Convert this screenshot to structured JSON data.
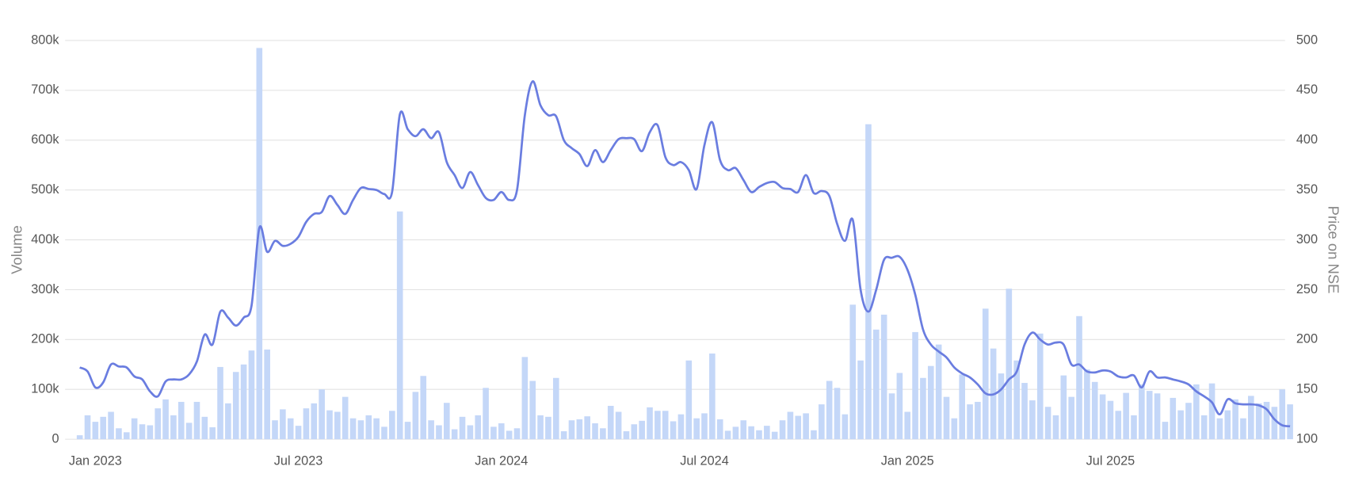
{
  "chart_data": {
    "type": "bar-line",
    "y_label": "Volume",
    "y2_label": "Price on NSE",
    "categories": [
      null,
      null,
      "Jan 2023",
      null,
      null,
      null,
      null,
      null,
      null,
      null,
      null,
      null,
      null,
      null,
      null,
      null,
      null,
      null,
      null,
      null,
      null,
      null,
      null,
      null,
      null,
      null,
      null,
      null,
      "Jul 2023",
      null,
      null,
      null,
      null,
      null,
      null,
      null,
      null,
      null,
      null,
      null,
      null,
      null,
      null,
      null,
      null,
      null,
      null,
      null,
      null,
      null,
      null,
      null,
      null,
      null,
      "Jan 2024",
      null,
      null,
      null,
      null,
      null,
      null,
      null,
      null,
      null,
      null,
      null,
      null,
      null,
      null,
      null,
      null,
      null,
      null,
      null,
      null,
      null,
      null,
      null,
      null,
      null,
      "Jul 2024",
      null,
      null,
      null,
      null,
      null,
      null,
      null,
      null,
      null,
      null,
      null,
      null,
      null,
      null,
      null,
      null,
      null,
      null,
      null,
      null,
      null,
      null,
      null,
      null,
      null,
      "Jan 2025",
      null,
      null,
      null,
      null,
      null,
      null,
      null,
      null,
      null,
      null,
      null,
      null,
      null,
      null,
      null,
      null,
      null,
      null,
      null,
      null,
      null,
      null,
      null,
      null,
      null,
      "Jul 2025",
      null,
      null,
      null,
      null,
      null,
      null,
      null,
      null,
      null,
      null,
      null,
      null,
      null,
      null,
      null,
      null,
      null,
      null,
      null,
      null,
      null,
      null,
      null
    ],
    "series": [
      {
        "type": "bar",
        "color": "#c4d7f8",
        "values": [
          8000,
          48000,
          35000,
          45000,
          55000,
          22000,
          14000,
          42000,
          30000,
          28000,
          62000,
          80000,
          48000,
          75000,
          33000,
          75000,
          45000,
          24000,
          145000,
          72000,
          135000,
          150000,
          178000,
          785000,
          180000,
          38000,
          60000,
          42000,
          27000,
          62000,
          72000,
          100000,
          58000,
          55000,
          85000,
          42000,
          38000,
          48000,
          42000,
          25000,
          57000,
          457000,
          35000,
          95000,
          127000,
          38000,
          28000,
          73000,
          20000,
          45000,
          28000,
          48000,
          103000,
          25000,
          32000,
          17000,
          22000,
          165000,
          117000,
          48000,
          45000,
          123000,
          16000,
          38000,
          40000,
          46000,
          32000,
          22000,
          67000,
          55000,
          16000,
          30000,
          37000,
          64000,
          57000,
          57000,
          36000,
          50000,
          158000,
          42000,
          52000,
          172000,
          40000,
          17000,
          25000,
          38000,
          26000,
          18000,
          27000,
          15000,
          38000,
          55000,
          47000,
          52000,
          18000,
          70000,
          117000,
          103000,
          50000,
          270000,
          158000,
          632000,
          220000,
          250000,
          92000,
          133000,
          55000,
          215000,
          123000,
          147000,
          190000,
          85000,
          42000,
          130000,
          70000,
          75000,
          262000,
          182000,
          132000,
          302000,
          158000,
          113000,
          78000,
          212000,
          65000,
          48000,
          128000,
          85000,
          247000,
          140000,
          115000,
          90000,
          77000,
          57000,
          93000,
          48000,
          110000,
          97000,
          92000,
          35000,
          83000,
          58000,
          73000,
          110000,
          48000,
          112000,
          42000,
          58000,
          80000,
          42000,
          87000,
          72000,
          75000,
          65000,
          100000,
          70000
        ]
      },
      {
        "type": "line",
        "axis": "y2",
        "color": "#6a7de0",
        "values": [
          172,
          168,
          152,
          157,
          175,
          173,
          172,
          163,
          160,
          148,
          143,
          158,
          160,
          160,
          165,
          178,
          205,
          195,
          228,
          222,
          214,
          222,
          234,
          312,
          288,
          299,
          294,
          296,
          303,
          318,
          326,
          328,
          344,
          335,
          326,
          340,
          352,
          351,
          350,
          346,
          348,
          426,
          411,
          404,
          411,
          402,
          408,
          378,
          365,
          352,
          368,
          355,
          342,
          340,
          348,
          340,
          350,
          425,
          459,
          435,
          425,
          424,
          400,
          392,
          386,
          374,
          390,
          378,
          390,
          401,
          402,
          401,
          389,
          408,
          415,
          383,
          375,
          378,
          370,
          351,
          395,
          418,
          380,
          370,
          372,
          360,
          348,
          353,
          357,
          358,
          352,
          351,
          348,
          365,
          347,
          349,
          344,
          316,
          299,
          320,
          250,
          228,
          250,
          280,
          282,
          283,
          270,
          245,
          210,
          195,
          188,
          182,
          172,
          166,
          162,
          155,
          146,
          145,
          150,
          160,
          168,
          195,
          207,
          200,
          195,
          197,
          195,
          175,
          175,
          168,
          167,
          169,
          168,
          163,
          162,
          164,
          152,
          168,
          162,
          162,
          160,
          158,
          155,
          148,
          143,
          137,
          125,
          140,
          136,
          135,
          135,
          134,
          130,
          120,
          114,
          113
        ]
      }
    ],
    "ylim": [
      0,
      800000
    ],
    "yticks": [
      0,
      {
        "value": 100000,
        "label": "100k"
      },
      {
        "value": 200000,
        "label": "200k"
      },
      {
        "value": 300000,
        "label": "300k"
      },
      {
        "value": 400000,
        "label": "400k"
      },
      {
        "value": 500000,
        "label": "500k"
      },
      {
        "value": 600000,
        "label": "600k"
      },
      {
        "value": 700000,
        "label": "700k"
      },
      {
        "value": 800000,
        "label": "800k"
      }
    ],
    "y2lim": [
      100,
      500
    ],
    "y2ticks": [
      100,
      150,
      200,
      250,
      300,
      350,
      400,
      450,
      500
    ],
    "grid": true
  }
}
